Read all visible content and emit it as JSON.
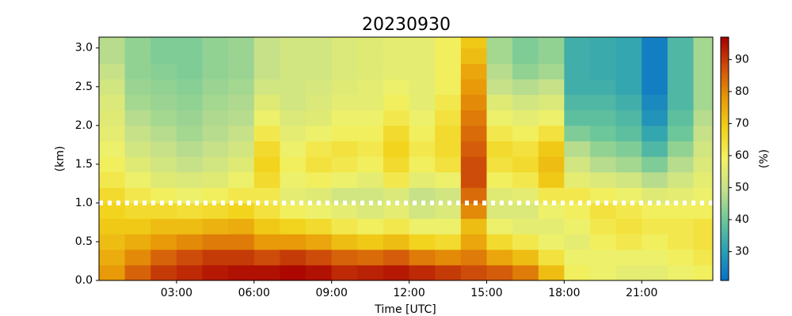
{
  "chart_data": {
    "type": "heatmap",
    "title": "20230930",
    "xlabel": "Time [UTC]",
    "ylabel": "(km)",
    "colorbar_label": "(%)",
    "x_edges": [
      0,
      1,
      2,
      3,
      4,
      5,
      6,
      7,
      8,
      9,
      10,
      11,
      12,
      13,
      14,
      15,
      16,
      17,
      18,
      19,
      20,
      21,
      22,
      23,
      24
    ],
    "y_edges": [
      0,
      0.2,
      0.4,
      0.6,
      0.8,
      1.0,
      1.2,
      1.4,
      1.6,
      1.8,
      2.0,
      2.2,
      2.4,
      2.6,
      2.8,
      3.0,
      3.2
    ],
    "z": [
      [
        78,
        75,
        72,
        70,
        68,
        66,
        62,
        60,
        58,
        56,
        55,
        54,
        52,
        50,
        48,
        48
      ],
      [
        85,
        80,
        75,
        70,
        66,
        62,
        58,
        55,
        52,
        50,
        48,
        46,
        45,
        44,
        44,
        44
      ],
      [
        90,
        85,
        78,
        72,
        66,
        60,
        55,
        52,
        50,
        48,
        46,
        45,
        44,
        43,
        42,
        42
      ],
      [
        92,
        88,
        80,
        72,
        65,
        58,
        54,
        50,
        48,
        46,
        45,
        44,
        43,
        42,
        42,
        42
      ],
      [
        94,
        90,
        82,
        74,
        66,
        60,
        55,
        52,
        50,
        48,
        47,
        46,
        45,
        44,
        44,
        44
      ],
      [
        95,
        90,
        82,
        75,
        68,
        62,
        58,
        55,
        52,
        50,
        48,
        47,
        46,
        45,
        45,
        45
      ],
      [
        95,
        88,
        78,
        70,
        64,
        62,
        66,
        68,
        66,
        62,
        58,
        55,
        52,
        50,
        50,
        50
      ],
      [
        96,
        90,
        78,
        68,
        60,
        56,
        58,
        60,
        58,
        56,
        54,
        52,
        52,
        52,
        52,
        52
      ],
      [
        95,
        88,
        76,
        66,
        58,
        55,
        60,
        64,
        62,
        58,
        55,
        54,
        53,
        52,
        52,
        52
      ],
      [
        92,
        85,
        72,
        62,
        56,
        52,
        58,
        62,
        64,
        60,
        58,
        56,
        55,
        54,
        54,
        54
      ],
      [
        93,
        84,
        70,
        60,
        54,
        52,
        56,
        60,
        62,
        60,
        58,
        56,
        56,
        55,
        55,
        55
      ],
      [
        94,
        86,
        72,
        62,
        56,
        54,
        62,
        66,
        68,
        66,
        62,
        60,
        58,
        56,
        56,
        56
      ],
      [
        92,
        82,
        68,
        58,
        52,
        50,
        56,
        60,
        62,
        60,
        58,
        56,
        56,
        56,
        56,
        56
      ],
      [
        90,
        80,
        66,
        58,
        54,
        52,
        58,
        64,
        66,
        66,
        64,
        62,
        60,
        60,
        60,
        60
      ],
      [
        88,
        82,
        76,
        72,
        80,
        84,
        88,
        88,
        86,
        84,
        82,
        80,
        78,
        76,
        72,
        70
      ],
      [
        86,
        76,
        66,
        58,
        54,
        55,
        60,
        64,
        66,
        62,
        58,
        55,
        50,
        48,
        46,
        46
      ],
      [
        82,
        72,
        62,
        56,
        54,
        56,
        62,
        66,
        64,
        60,
        56,
        52,
        48,
        44,
        42,
        42
      ],
      [
        72,
        64,
        58,
        56,
        58,
        62,
        70,
        72,
        70,
        64,
        58,
        54,
        50,
        46,
        44,
        44
      ],
      [
        60,
        58,
        56,
        58,
        60,
        62,
        56,
        52,
        48,
        42,
        38,
        36,
        34,
        34,
        34,
        34
      ],
      [
        58,
        58,
        60,
        62,
        64,
        60,
        54,
        48,
        44,
        40,
        38,
        36,
        34,
        33,
        33,
        33
      ],
      [
        56,
        58,
        62,
        64,
        62,
        58,
        52,
        46,
        42,
        38,
        36,
        34,
        32,
        32,
        32,
        32
      ],
      [
        56,
        58,
        60,
        62,
        60,
        55,
        48,
        42,
        36,
        32,
        28,
        26,
        24,
        24,
        24,
        24
      ],
      [
        58,
        60,
        62,
        62,
        60,
        56,
        52,
        48,
        44,
        40,
        38,
        36,
        36,
        36,
        36,
        36
      ],
      [
        60,
        62,
        64,
        64,
        60,
        58,
        56,
        54,
        52,
        50,
        48,
        46,
        46,
        46,
        46,
        46
      ]
    ],
    "xlim": [
      0,
      23.75
    ],
    "ylim": [
      0,
      3.14
    ],
    "xticks": [
      {
        "value": 3,
        "label": "03:00"
      },
      {
        "value": 6,
        "label": "06:00"
      },
      {
        "value": 9,
        "label": "09:00"
      },
      {
        "value": 12,
        "label": "12:00"
      },
      {
        "value": 15,
        "label": "15:00"
      },
      {
        "value": 18,
        "label": "18:00"
      },
      {
        "value": 21,
        "label": "21:00"
      }
    ],
    "yticks": [
      {
        "value": 0,
        "label": "0.0"
      },
      0.5,
      {
        "value": 1,
        "label": "1.0"
      },
      1.5,
      {
        "value": 2,
        "label": "2.0"
      },
      2.5,
      {
        "value": 3,
        "label": "3.0"
      }
    ],
    "clim": [
      21,
      97
    ],
    "cticks": [
      30,
      40,
      50,
      60,
      70,
      80,
      90
    ],
    "colormap": [
      "#0a6fc8",
      "#2aa0b4",
      "#6cc79a",
      "#c5e08a",
      "#f2f266",
      "#f2d21a",
      "#e89a08",
      "#d0500a",
      "#a80000"
    ],
    "hline": 1
  }
}
